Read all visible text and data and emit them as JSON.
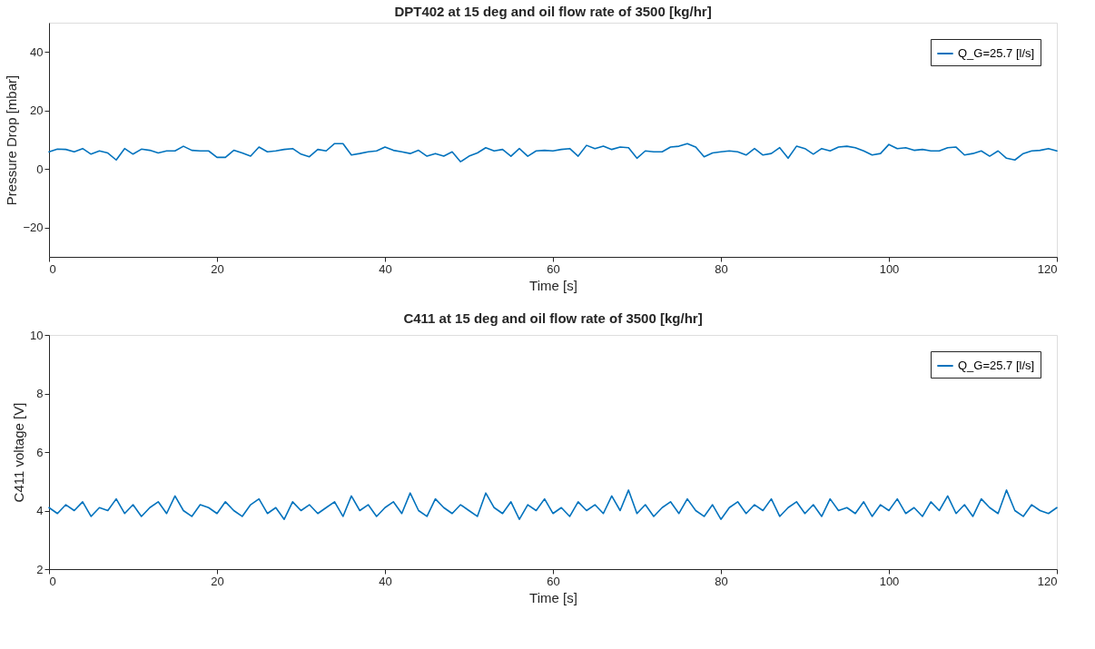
{
  "chart_data": [
    {
      "type": "line",
      "title": "DPT402 at 15 deg and oil flow rate of 3500 [kg/hr]",
      "xlabel": "Time [s]",
      "ylabel": "Pressure Drop [mbar]",
      "x": [
        0,
        1,
        2,
        3,
        4,
        5,
        6,
        7,
        8,
        9,
        10,
        11,
        12,
        13,
        14,
        15,
        16,
        17,
        18,
        19,
        20,
        21,
        22,
        23,
        24,
        25,
        26,
        27,
        28,
        29,
        30,
        31,
        32,
        33,
        34,
        35,
        36,
        37,
        38,
        39,
        40,
        41,
        42,
        43,
        44,
        45,
        46,
        47,
        48,
        49,
        50,
        51,
        52,
        53,
        54,
        55,
        56,
        57,
        58,
        59,
        60,
        61,
        62,
        63,
        64,
        65,
        66,
        67,
        68,
        69,
        70,
        71,
        72,
        73,
        74,
        75,
        76,
        77,
        78,
        79,
        80,
        81,
        82,
        83,
        84,
        85,
        86,
        87,
        88,
        89,
        90,
        91,
        92,
        93,
        94,
        95,
        96,
        97,
        98,
        99,
        100,
        101,
        102,
        103,
        104,
        105,
        106,
        107,
        108,
        109,
        110,
        111,
        112,
        113,
        114,
        115,
        116,
        117,
        118,
        119,
        120
      ],
      "series": [
        {
          "name": "Q_G=25.7 [l/s]",
          "color": "#0072bd",
          "values": [
            5.9,
            6.8,
            6.7,
            5.9,
            7.0,
            5.1,
            6.2,
            5.5,
            3.1,
            7.0,
            5.1,
            6.8,
            6.4,
            5.5,
            6.2,
            6.2,
            7.8,
            6.4,
            6.2,
            6.2,
            4.0,
            4.0,
            6.4,
            5.5,
            4.4,
            7.5,
            5.9,
            6.2,
            6.7,
            7.0,
            5.1,
            4.2,
            6.7,
            6.2,
            8.7,
            8.7,
            4.8,
            5.3,
            5.9,
            6.2,
            7.5,
            6.4,
            5.9,
            5.3,
            6.4,
            4.4,
            5.3,
            4.4,
            5.9,
            2.5,
            4.4,
            5.5,
            7.3,
            6.2,
            6.7,
            4.4,
            7.0,
            4.4,
            6.2,
            6.4,
            6.2,
            6.7,
            7.0,
            4.4,
            8.1,
            7.0,
            7.8,
            6.7,
            7.5,
            7.3,
            3.7,
            6.2,
            5.9,
            5.9,
            7.5,
            7.8,
            8.7,
            7.5,
            4.2,
            5.5,
            5.9,
            6.2,
            5.9,
            4.8,
            7.0,
            4.8,
            5.3,
            7.3,
            3.7,
            7.8,
            7.0,
            5.1,
            7.0,
            6.2,
            7.5,
            7.8,
            7.3,
            6.2,
            4.8,
            5.3,
            8.4,
            7.0,
            7.3,
            6.4,
            6.7,
            6.2,
            6.2,
            7.3,
            7.5,
            4.8,
            5.3,
            6.2,
            4.4,
            6.2,
            3.7,
            3.1,
            5.3,
            6.2,
            6.4,
            7.0,
            6.2
          ]
        }
      ],
      "xlim": [
        0,
        120
      ],
      "xticks": [
        0,
        20,
        40,
        60,
        80,
        100,
        120
      ],
      "ylim": [
        -30,
        50
      ],
      "yticks": [
        -20,
        0,
        20,
        40
      ],
      "grid": false,
      "legend": "top right",
      "marker": "none",
      "line_style": "solid"
    },
    {
      "type": "line",
      "title": "C411 at 15 deg and oil flow rate of 3500 [kg/hr]",
      "xlabel": "Time [s]",
      "ylabel": "C411 voltage [V]",
      "x": [
        0,
        1,
        2,
        3,
        4,
        5,
        6,
        7,
        8,
        9,
        10,
        11,
        12,
        13,
        14,
        15,
        16,
        17,
        18,
        19,
        20,
        21,
        22,
        23,
        24,
        25,
        26,
        27,
        28,
        29,
        30,
        31,
        32,
        33,
        34,
        35,
        36,
        37,
        38,
        39,
        40,
        41,
        42,
        43,
        44,
        45,
        46,
        47,
        48,
        49,
        50,
        51,
        52,
        53,
        54,
        55,
        56,
        57,
        58,
        59,
        60,
        61,
        62,
        63,
        64,
        65,
        66,
        67,
        68,
        69,
        70,
        71,
        72,
        73,
        74,
        75,
        76,
        77,
        78,
        79,
        80,
        81,
        82,
        83,
        84,
        85,
        86,
        87,
        88,
        89,
        90,
        91,
        92,
        93,
        94,
        95,
        96,
        97,
        98,
        99,
        100,
        101,
        102,
        103,
        104,
        105,
        106,
        107,
        108,
        109,
        110,
        111,
        112,
        113,
        114,
        115,
        116,
        117,
        118,
        119,
        120
      ],
      "series": [
        {
          "name": "Q_G=25.7 [l/s]",
          "color": "#0072bd",
          "values": [
            4.1,
            3.9,
            4.2,
            4.0,
            4.3,
            3.8,
            4.1,
            4.0,
            4.4,
            3.9,
            4.2,
            3.8,
            4.1,
            4.3,
            3.9,
            4.5,
            4.0,
            3.8,
            4.2,
            4.1,
            3.9,
            4.3,
            4.0,
            3.8,
            4.2,
            4.4,
            3.9,
            4.1,
            3.7,
            4.3,
            4.0,
            4.2,
            3.9,
            4.1,
            4.3,
            3.8,
            4.5,
            4.0,
            4.2,
            3.8,
            4.1,
            4.3,
            3.9,
            4.6,
            4.0,
            3.8,
            4.4,
            4.1,
            3.9,
            4.2,
            4.0,
            3.8,
            4.6,
            4.1,
            3.9,
            4.3,
            3.7,
            4.2,
            4.0,
            4.4,
            3.9,
            4.1,
            3.8,
            4.3,
            4.0,
            4.2,
            3.9,
            4.5,
            4.0,
            4.7,
            3.9,
            4.2,
            3.8,
            4.1,
            4.3,
            3.9,
            4.4,
            4.0,
            3.8,
            4.2,
            3.7,
            4.1,
            4.3,
            3.9,
            4.2,
            4.0,
            4.4,
            3.8,
            4.1,
            4.3,
            3.9,
            4.2,
            3.8,
            4.4,
            4.0,
            4.1,
            3.9,
            4.3,
            3.8,
            4.2,
            4.0,
            4.4,
            3.9,
            4.1,
            3.8,
            4.3,
            4.0,
            4.5,
            3.9,
            4.2,
            3.8,
            4.4,
            4.1,
            3.9,
            4.7,
            4.0,
            3.8,
            4.2,
            4.0,
            3.9,
            4.1
          ]
        }
      ],
      "xlim": [
        0,
        120
      ],
      "xticks": [
        0,
        20,
        40,
        60,
        80,
        100,
        120
      ],
      "ylim": [
        2,
        10
      ],
      "yticks": [
        2,
        4,
        6,
        8,
        10
      ],
      "grid": false,
      "legend": "top right",
      "marker": "none",
      "line_style": "solid"
    }
  ]
}
